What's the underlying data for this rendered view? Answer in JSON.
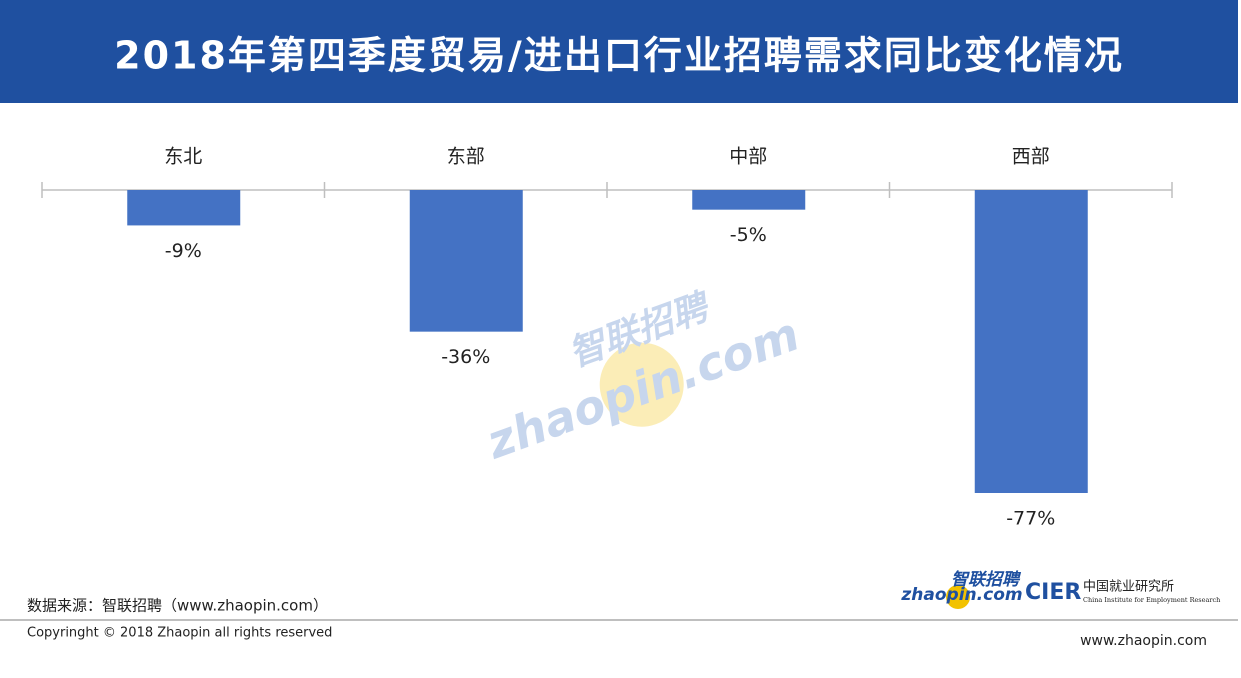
{
  "chart_data": {
    "type": "bar",
    "title": "2018年第四季度贸易/进出口行业招聘需求同比变化情况",
    "categories": [
      "东北",
      "东部",
      "中部",
      "西部"
    ],
    "values": [
      -9,
      -36,
      -5,
      -77
    ],
    "value_labels": [
      "-9%",
      "-36%",
      "-5%",
      "-77%"
    ],
    "color": "#4472c4",
    "source": "数据来源：智联招聘（www.zhaopin.com）",
    "copyright": "Copyringht © 2018 Zhaopin all rights reserved",
    "website": "www.zhaopin.com"
  },
  "branding": {
    "logo_cn": "智联招聘",
    "logo_en": "zhaopin.com",
    "cier": "CIER",
    "cier_cn": "中国就业研究所",
    "cier_en": "China Institute for Employment Research",
    "watermark_cn": "智联招聘",
    "watermark_en": "zhaopin.com"
  }
}
